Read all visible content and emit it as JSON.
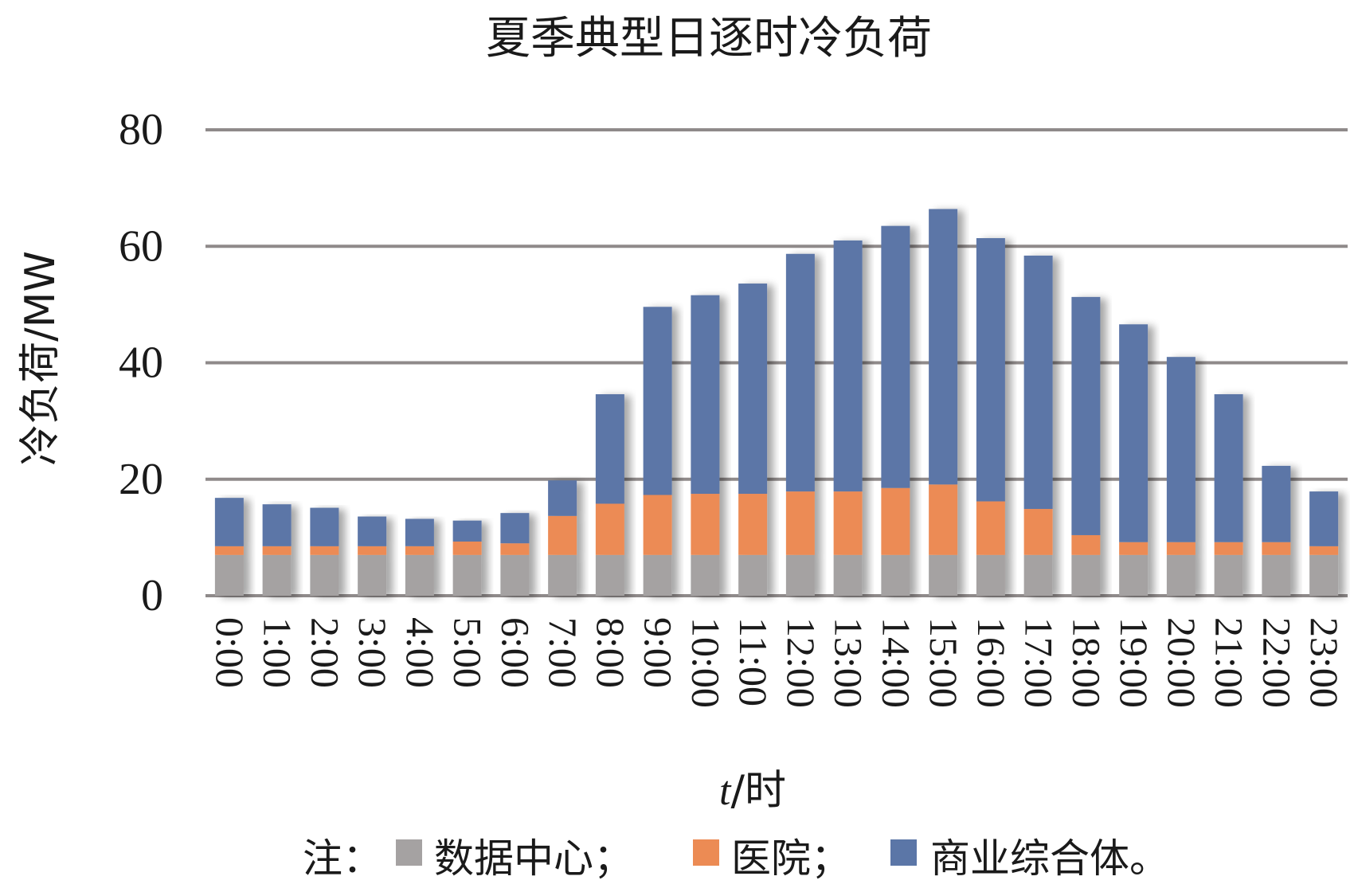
{
  "chart_data": {
    "type": "bar",
    "stacked": true,
    "title": "夏季典型日逐时冷负荷",
    "xlabel_italic": "t",
    "xlabel_rest": "/时",
    "ylabel": "冷负荷/MW",
    "ylim": [
      0,
      80
    ],
    "yticks": [
      "0",
      "20",
      "40",
      "60",
      "80"
    ],
    "grid": "horizontal",
    "categories": [
      "0:00",
      "1:00",
      "2:00",
      "3:00",
      "4:00",
      "5:00",
      "6:00",
      "7:00",
      "8:00",
      "9:00",
      "10:00",
      "11:00",
      "12:00",
      "13:00",
      "14:00",
      "15:00",
      "16:00",
      "17:00",
      "18:00",
      "19:00",
      "20:00",
      "21:00",
      "22:00",
      "23:00"
    ],
    "series": [
      {
        "name": "数据中心",
        "color": "#a5a2a2",
        "values": [
          7,
          7,
          7,
          7,
          7,
          7,
          7,
          7,
          7,
          7,
          7,
          7,
          7,
          7,
          7,
          7,
          7,
          7,
          7,
          7,
          7,
          7,
          7,
          7
        ]
      },
      {
        "name": "医院",
        "color": "#ec8b54",
        "values": [
          1.5,
          1.5,
          1.5,
          1.5,
          1.5,
          2.3,
          2,
          6.7,
          8.8,
          10.3,
          10.5,
          10.5,
          10.9,
          10.9,
          11.5,
          12.1,
          9.2,
          7.9,
          3.4,
          2.2,
          2.2,
          2.2,
          2.2,
          1.5
        ]
      },
      {
        "name": "商业综合体",
        "color": "#5b76a7",
        "values": [
          8.3,
          7.2,
          6.6,
          5.1,
          4.7,
          3.6,
          5.2,
          6.1,
          18.8,
          32.3,
          34.1,
          36.1,
          40.8,
          43.1,
          45,
          47.3,
          45.2,
          43.5,
          40.9,
          37.4,
          31.8,
          25.4,
          13.1,
          9.4
        ]
      }
    ]
  },
  "note": {
    "prefix": "注：",
    "items": [
      {
        "label": "数据中心；",
        "color": "#a5a2a2"
      },
      {
        "label": "医院；",
        "color": "#ec8b54"
      },
      {
        "label": "商业综合体。",
        "color": "#5b76a7"
      }
    ]
  }
}
